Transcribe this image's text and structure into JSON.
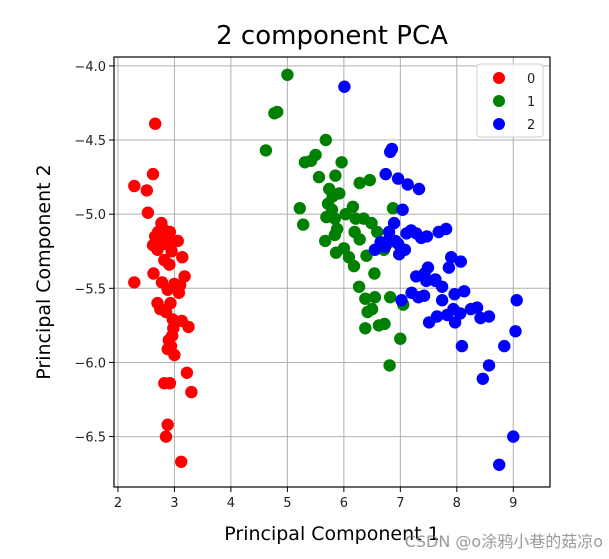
{
  "chart_data": {
    "type": "scatter",
    "title": "2 component PCA",
    "xlabel": "Principal Component 1",
    "ylabel": "Principal Component 2",
    "xlim": [
      1.93,
      9.65
    ],
    "ylim": [
      -6.84,
      -3.94
    ],
    "xticks": [
      2,
      3,
      4,
      5,
      6,
      7,
      8,
      9
    ],
    "yticks": [
      -4.0,
      -4.5,
      -5.0,
      -5.5,
      -6.0,
      -6.5
    ],
    "ytick_labels": [
      "−4.0",
      "−4.5",
      "−5.0",
      "−5.5",
      "−6.0",
      "−6.5"
    ],
    "grid": true,
    "legend_position": "upper right",
    "series": [
      {
        "name": "0",
        "color": "#ff0000",
        "points": [
          [
            2.66,
            -4.39
          ],
          [
            2.29,
            -4.81
          ],
          [
            2.51,
            -4.84
          ],
          [
            2.62,
            -4.73
          ],
          [
            2.53,
            -4.99
          ],
          [
            2.77,
            -5.06
          ],
          [
            2.71,
            -5.12
          ],
          [
            2.8,
            -5.1
          ],
          [
            2.66,
            -5.15
          ],
          [
            2.74,
            -5.17
          ],
          [
            2.86,
            -5.14
          ],
          [
            2.92,
            -5.12
          ],
          [
            2.62,
            -5.21
          ],
          [
            2.7,
            -5.24
          ],
          [
            2.83,
            -5.2
          ],
          [
            2.98,
            -5.19
          ],
          [
            3.06,
            -5.18
          ],
          [
            2.95,
            -5.25
          ],
          [
            3.14,
            -5.29
          ],
          [
            2.82,
            -5.31
          ],
          [
            2.91,
            -5.34
          ],
          [
            2.63,
            -5.4
          ],
          [
            2.78,
            -5.46
          ],
          [
            2.29,
            -5.46
          ],
          [
            3.0,
            -5.47
          ],
          [
            3.1,
            -5.48
          ],
          [
            3.18,
            -5.42
          ],
          [
            2.88,
            -5.51
          ],
          [
            3.08,
            -5.53
          ],
          [
            2.7,
            -5.6
          ],
          [
            2.75,
            -5.64
          ],
          [
            2.93,
            -5.6
          ],
          [
            2.85,
            -5.66
          ],
          [
            3.13,
            -5.72
          ],
          [
            3.25,
            -5.76
          ],
          [
            2.97,
            -5.71
          ],
          [
            2.98,
            -5.77
          ],
          [
            2.96,
            -5.82
          ],
          [
            2.9,
            -5.85
          ],
          [
            2.94,
            -5.89
          ],
          [
            2.88,
            -5.91
          ],
          [
            3.0,
            -5.95
          ],
          [
            3.22,
            -6.07
          ],
          [
            2.82,
            -6.14
          ],
          [
            2.92,
            -6.14
          ],
          [
            3.3,
            -6.2
          ],
          [
            2.88,
            -6.42
          ],
          [
            2.85,
            -6.5
          ],
          [
            3.12,
            -6.67
          ]
        ]
      },
      {
        "name": "1",
        "color": "#008000",
        "points": [
          [
            5.0,
            -4.06
          ],
          [
            4.77,
            -4.32
          ],
          [
            4.82,
            -4.31
          ],
          [
            4.62,
            -4.57
          ],
          [
            5.68,
            -4.5
          ],
          [
            5.31,
            -4.65
          ],
          [
            5.42,
            -4.64
          ],
          [
            5.5,
            -4.6
          ],
          [
            5.22,
            -4.96
          ],
          [
            5.96,
            -4.65
          ],
          [
            5.56,
            -4.75
          ],
          [
            5.85,
            -4.74
          ],
          [
            5.28,
            -5.07
          ],
          [
            5.74,
            -4.83
          ],
          [
            5.8,
            -4.88
          ],
          [
            5.92,
            -4.86
          ],
          [
            6.28,
            -4.79
          ],
          [
            6.16,
            -4.95
          ],
          [
            6.46,
            -4.77
          ],
          [
            5.72,
            -4.93
          ],
          [
            5.69,
            -5.02
          ],
          [
            5.79,
            -4.97
          ],
          [
            5.84,
            -5.03
          ],
          [
            6.03,
            -5.0
          ],
          [
            6.21,
            -5.03
          ],
          [
            6.35,
            -5.03
          ],
          [
            5.88,
            -5.1
          ],
          [
            5.67,
            -5.18
          ],
          [
            5.84,
            -5.14
          ],
          [
            6.19,
            -5.12
          ],
          [
            6.49,
            -5.06
          ],
          [
            6.87,
            -4.96
          ],
          [
            6.59,
            -5.12
          ],
          [
            5.86,
            -5.26
          ],
          [
            6.0,
            -5.23
          ],
          [
            6.4,
            -5.28
          ],
          [
            6.65,
            -5.2
          ],
          [
            6.71,
            -5.24
          ],
          [
            6.18,
            -5.35
          ],
          [
            6.8,
            -5.19
          ],
          [
            6.54,
            -5.4
          ],
          [
            6.27,
            -5.49
          ],
          [
            6.38,
            -5.57
          ],
          [
            6.55,
            -5.56
          ],
          [
            6.82,
            -5.56
          ],
          [
            7.05,
            -5.61
          ],
          [
            6.5,
            -5.64
          ],
          [
            6.42,
            -5.66
          ],
          [
            6.72,
            -5.74
          ],
          [
            6.62,
            -5.75
          ],
          [
            6.38,
            -5.77
          ],
          [
            7.0,
            -5.84
          ],
          [
            6.81,
            -6.02
          ],
          [
            6.09,
            -5.29
          ],
          [
            6.28,
            -5.17
          ]
        ]
      },
      {
        "name": "2",
        "color": "#0000ff",
        "points": [
          [
            6.01,
            -4.14
          ],
          [
            6.85,
            -4.56
          ],
          [
            6.82,
            -4.58
          ],
          [
            6.74,
            -4.73
          ],
          [
            6.96,
            -4.76
          ],
          [
            7.13,
            -4.8
          ],
          [
            7.33,
            -4.83
          ],
          [
            7.04,
            -4.97
          ],
          [
            6.89,
            -5.06
          ],
          [
            7.19,
            -5.11
          ],
          [
            7.11,
            -5.13
          ],
          [
            7.28,
            -5.13
          ],
          [
            7.37,
            -5.16
          ],
          [
            7.47,
            -5.15
          ],
          [
            7.68,
            -5.12
          ],
          [
            7.81,
            -5.1
          ],
          [
            6.65,
            -5.19
          ],
          [
            6.78,
            -5.18
          ],
          [
            6.73,
            -5.22
          ],
          [
            6.91,
            -5.18
          ],
          [
            6.55,
            -5.24
          ],
          [
            6.98,
            -5.27
          ],
          [
            7.28,
            -5.42
          ],
          [
            7.49,
            -5.36
          ],
          [
            7.43,
            -5.4
          ],
          [
            7.46,
            -5.45
          ],
          [
            7.62,
            -5.44
          ],
          [
            7.74,
            -5.49
          ],
          [
            7.9,
            -5.29
          ],
          [
            8.07,
            -5.32
          ],
          [
            7.2,
            -5.53
          ],
          [
            7.42,
            -5.55
          ],
          [
            7.74,
            -5.58
          ],
          [
            7.96,
            -5.54
          ],
          [
            8.13,
            -5.52
          ],
          [
            7.02,
            -5.58
          ],
          [
            7.32,
            -5.56
          ],
          [
            7.51,
            -5.73
          ],
          [
            7.83,
            -5.68
          ],
          [
            7.65,
            -5.69
          ],
          [
            7.94,
            -5.64
          ],
          [
            8.06,
            -5.67
          ],
          [
            8.25,
            -5.64
          ],
          [
            8.36,
            -5.63
          ],
          [
            8.42,
            -5.7
          ],
          [
            8.57,
            -5.69
          ],
          [
            7.97,
            -5.73
          ],
          [
            8.09,
            -5.89
          ],
          [
            8.84,
            -5.89
          ],
          [
            9.06,
            -5.58
          ],
          [
            9.04,
            -5.79
          ],
          [
            8.57,
            -6.02
          ],
          [
            8.46,
            -6.11
          ],
          [
            9.0,
            -6.5
          ],
          [
            8.75,
            -6.69
          ],
          [
            7.62,
            -5.45
          ],
          [
            7.86,
            -5.36
          ],
          [
            6.8,
            -5.12
          ],
          [
            7.08,
            -5.24
          ],
          [
            6.96,
            -5.2
          ]
        ]
      }
    ]
  },
  "legend": {
    "items": [
      {
        "label": "0",
        "color": "#ff0000"
      },
      {
        "label": "1",
        "color": "#008000"
      },
      {
        "label": "2",
        "color": "#0000ff"
      }
    ]
  },
  "watermark": "CSDN @o涂鸦小巷的菇凉o"
}
